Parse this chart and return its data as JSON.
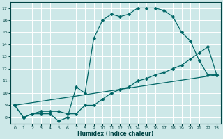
{
  "xlabel": "Humidex (Indice chaleur)",
  "bg_color": "#cde8e8",
  "grid_color": "#ffffff",
  "line_color": "#006666",
  "xlim": [
    -0.5,
    23.5
  ],
  "ylim": [
    7.5,
    17.5
  ],
  "xticks": [
    0,
    1,
    2,
    3,
    4,
    5,
    6,
    7,
    8,
    9,
    10,
    11,
    12,
    13,
    14,
    15,
    16,
    17,
    18,
    19,
    20,
    21,
    22,
    23
  ],
  "yticks": [
    8,
    9,
    10,
    11,
    12,
    13,
    14,
    15,
    16,
    17
  ],
  "series1_x": [
    0,
    1,
    2,
    3,
    4,
    5,
    6,
    7,
    8,
    9,
    10,
    11,
    12,
    13,
    14,
    15,
    16,
    17,
    18,
    19,
    20,
    21,
    22,
    23
  ],
  "series1_y": [
    9.0,
    8.0,
    8.3,
    8.3,
    8.3,
    7.7,
    8.0,
    10.5,
    10.0,
    14.5,
    16.0,
    16.5,
    16.3,
    16.5,
    17.0,
    17.0,
    17.0,
    16.8,
    16.3,
    15.0,
    14.3,
    12.7,
    11.5,
    11.5
  ],
  "series2_x": [
    0,
    1,
    2,
    3,
    4,
    5,
    6,
    7,
    8,
    9,
    10,
    11,
    12,
    13,
    14,
    15,
    16,
    17,
    18,
    19,
    20,
    21,
    22,
    23
  ],
  "series2_y": [
    9.0,
    8.0,
    8.3,
    8.5,
    8.5,
    8.5,
    8.3,
    8.3,
    9.0,
    9.0,
    9.5,
    10.0,
    10.3,
    10.5,
    11.0,
    11.2,
    11.5,
    11.7,
    12.0,
    12.3,
    12.8,
    13.3,
    13.8,
    11.5
  ],
  "series3_x": [
    0,
    23
  ],
  "series3_y": [
    9.0,
    11.5
  ]
}
